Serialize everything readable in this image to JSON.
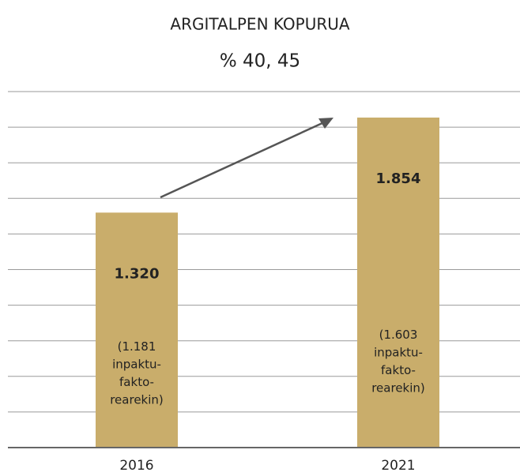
{
  "chart_data": {
    "type": "bar",
    "title": "ARGITALPEN KOPURUA",
    "subtitle": "% 40, 45",
    "categories": [
      "2016",
      "2021"
    ],
    "values": [
      1320,
      1854
    ],
    "value_labels": [
      "1.320",
      "1.854"
    ],
    "annotations": [
      [
        "(1.181",
        "inpaktu-",
        "fakto-",
        "rearekin)"
      ],
      [
        "(1.603",
        "inpaktu-",
        "fakto-",
        "rearekin)"
      ]
    ],
    "color": "#c9ad6b",
    "ylim": [
      0,
      2000
    ],
    "yticks": [
      0,
      200,
      400,
      600,
      800,
      1000,
      1200,
      1400,
      1600,
      1800,
      2000
    ],
    "grid": true
  }
}
